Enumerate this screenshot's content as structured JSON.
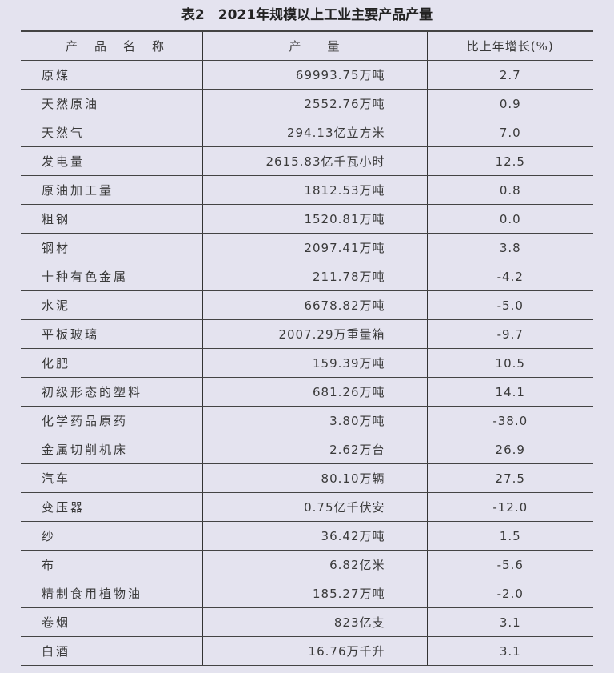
{
  "title": "表2　2021年规模以上工业主要产品产量",
  "headers": [
    "产　品　名　称",
    "产　　量",
    "比上年增长(%)"
  ],
  "rows": [
    [
      "原煤",
      "69993.75万吨",
      "2.7"
    ],
    [
      "天然原油",
      "2552.76万吨",
      "0.9"
    ],
    [
      "天然气",
      "294.13亿立方米",
      "7.0"
    ],
    [
      "发电量",
      "2615.83亿千瓦小时",
      "12.5"
    ],
    [
      "原油加工量",
      "1812.53万吨",
      "0.8"
    ],
    [
      "粗钢",
      "1520.81万吨",
      "0.0"
    ],
    [
      "钢材",
      "2097.41万吨",
      "3.8"
    ],
    [
      "十种有色金属",
      "211.78万吨",
      "-4.2"
    ],
    [
      "水泥",
      "6678.82万吨",
      "-5.0"
    ],
    [
      "平板玻璃",
      "2007.29万重量箱",
      "-9.7"
    ],
    [
      "化肥",
      "159.39万吨",
      "10.5"
    ],
    [
      "初级形态的塑料",
      "681.26万吨",
      "14.1"
    ],
    [
      "化学药品原药",
      "3.80万吨",
      "-38.0"
    ],
    [
      "金属切削机床",
      "2.62万台",
      "26.9"
    ],
    [
      "汽车",
      "80.10万辆",
      "27.5"
    ],
    [
      "变压器",
      "0.75亿千伏安",
      "-12.0"
    ],
    [
      "纱",
      "36.42万吨",
      "1.5"
    ],
    [
      "布",
      "6.82亿米",
      "-5.6"
    ],
    [
      "精制食用植物油",
      "185.27万吨",
      "-2.0"
    ],
    [
      "卷烟",
      "823亿支",
      "3.1"
    ],
    [
      "白酒",
      "16.76万千升",
      "3.1"
    ]
  ]
}
